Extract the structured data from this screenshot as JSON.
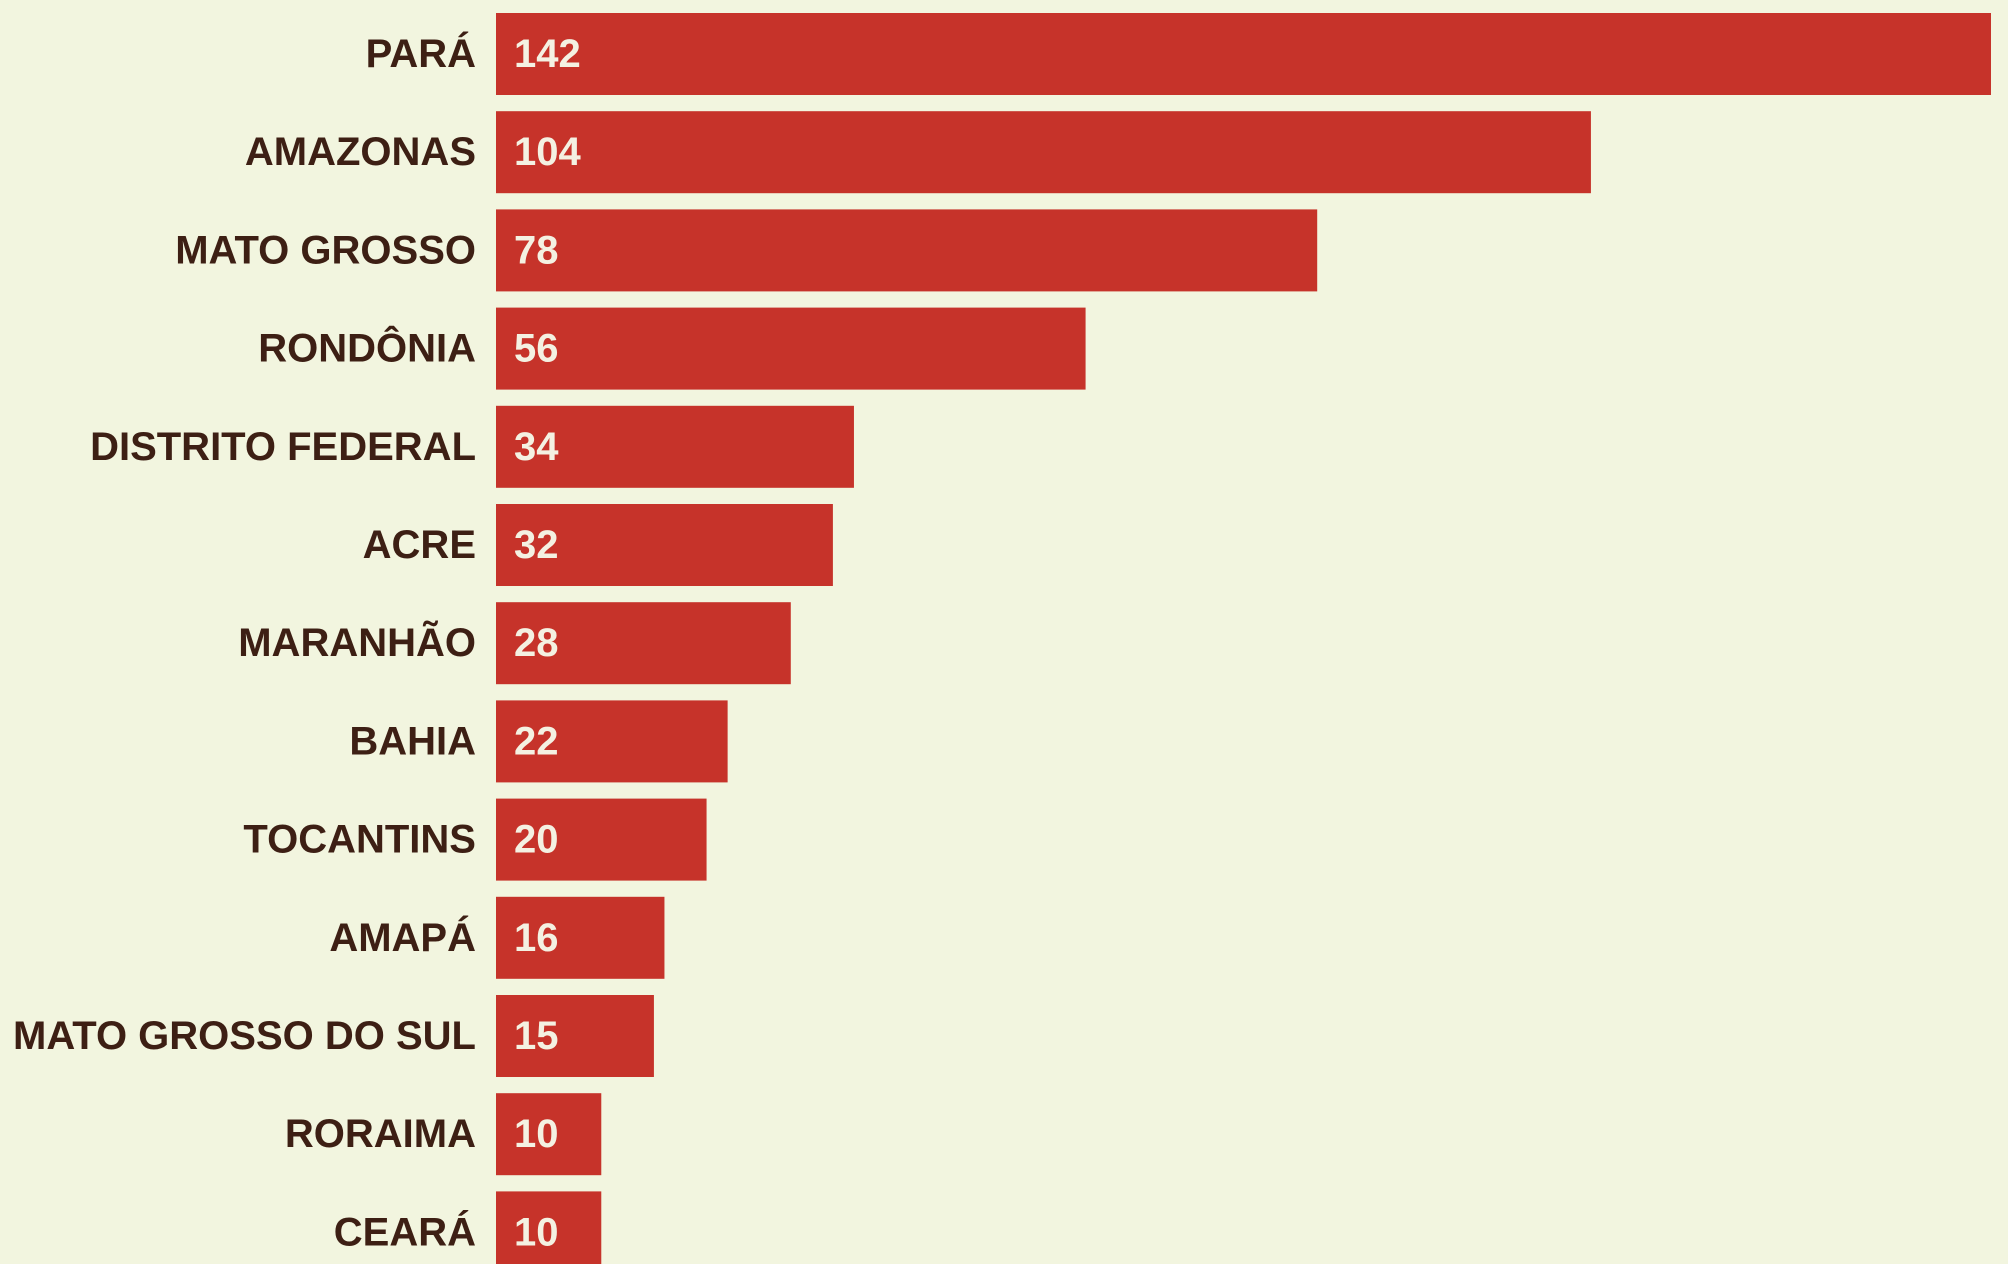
{
  "chart_data": {
    "type": "bar",
    "orientation": "horizontal",
    "categories": [
      "PARÁ",
      "AMAZONAS",
      "MATO GROSSO",
      "RONDÔNIA",
      "DISTRITO FEDERAL",
      "ACRE",
      "MARANHÃO",
      "BAHIA",
      "TOCANTINS",
      "AMAPÁ",
      "MATO GROSSO DO SUL",
      "RORAIMA",
      "CEARÁ"
    ],
    "values": [
      142,
      104,
      78,
      56,
      34,
      32,
      28,
      22,
      20,
      16,
      15,
      10,
      10
    ],
    "title": "",
    "xlabel": "",
    "ylabel": "",
    "xlim": [
      0,
      142
    ],
    "grid": false,
    "legend": "none",
    "data_labels": "inside-start"
  },
  "colors": {
    "background": "#f2f5df",
    "bar": "#c6332a",
    "category_text": "#3d1f14",
    "value_text": "#f4f1e2"
  }
}
